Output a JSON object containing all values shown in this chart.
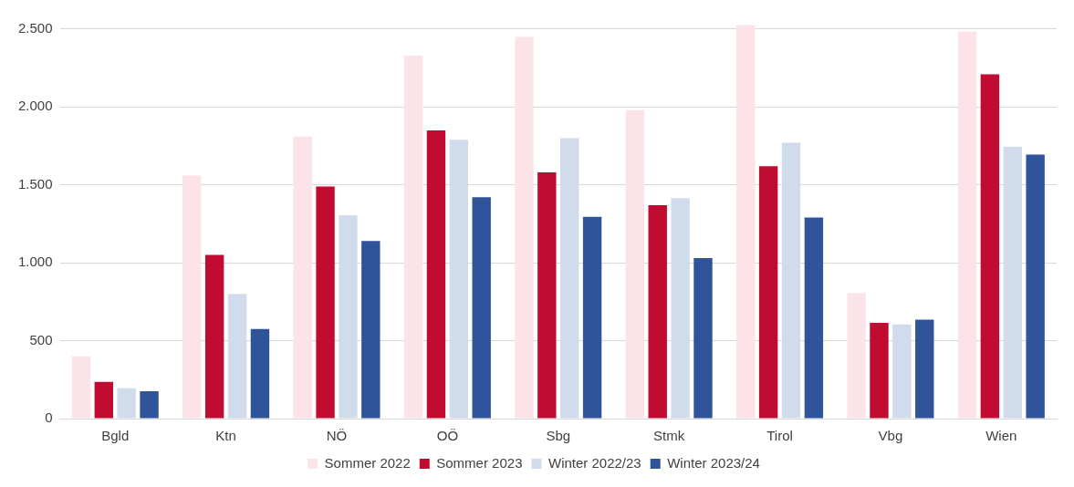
{
  "chart_data": {
    "type": "bar",
    "categories": [
      "Bgld",
      "Ktn",
      "NÖ",
      "OÖ",
      "Sbg",
      "Stmk",
      "Tirol",
      "Vbg",
      "Wien"
    ],
    "series": [
      {
        "name": "Sommer 2022",
        "color": "#fbe3e8",
        "values": [
          400,
          1560,
          1810,
          2330,
          2450,
          1980,
          2525,
          805,
          2485
        ]
      },
      {
        "name": "Sommer 2023",
        "color": "#c00c30",
        "values": [
          235,
          1050,
          1490,
          1850,
          1580,
          1370,
          1620,
          615,
          2210
        ]
      },
      {
        "name": "Winter 2022/23",
        "color": "#d0dcec",
        "values": [
          195,
          800,
          1305,
          1790,
          1800,
          1415,
          1770,
          605,
          1745
        ]
      },
      {
        "name": "Winter 2023/24",
        "color": "#2f549a",
        "values": [
          175,
          575,
          1140,
          1420,
          1295,
          1030,
          1290,
          635,
          1695
        ]
      }
    ],
    "ylim": [
      0,
      2540
    ],
    "yticks": [
      0,
      {
        "value": 500,
        "label": "500"
      },
      {
        "value": 1000,
        "label": "1.000"
      },
      {
        "value": 1500,
        "label": "1.500"
      },
      {
        "value": 2000,
        "label": "2.000"
      },
      {
        "value": 2500,
        "label": "2.500"
      }
    ],
    "grid": "y",
    "legend": "bottom"
  }
}
